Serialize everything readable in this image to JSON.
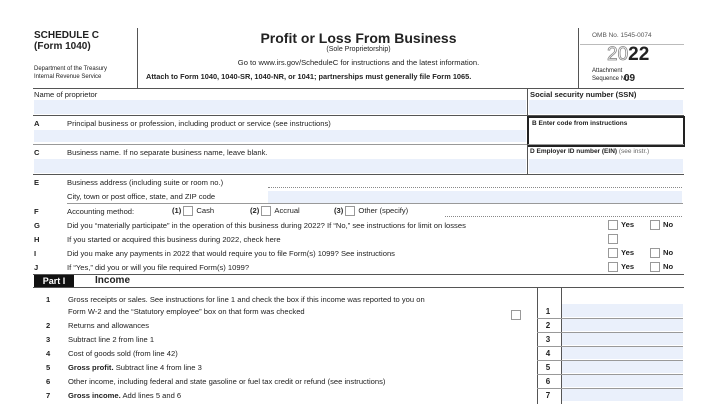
{
  "header": {
    "schedule": "SCHEDULE C",
    "form": "(Form 1040)",
    "dept": "Department of the Treasury",
    "irs": "Internal Revenue Service",
    "title": "Profit or Loss From Business",
    "subtitle": "(Sole Proprietorship)",
    "goto": "Go to www.irs.gov/ScheduleC for instructions and the latest information.",
    "attach": "Attach to Form 1040, 1040-SR, 1040-NR, or 1041; partnerships must generally file Form 1065.",
    "omb": "OMB No. 1545-0074",
    "year_light": "20",
    "year_bold": "22",
    "attachment": "Attachment",
    "sequence": "Sequence No.",
    "seq_no": "09"
  },
  "name_row": {
    "label": "Name of proprietor",
    "ssn": "Social security number (SSN)"
  },
  "lines": {
    "A": {
      "letter": "A",
      "text": "Principal business or profession, including product or service (see instructions)"
    },
    "B": {
      "letter": "B",
      "text": "Enter code from instructions"
    },
    "C": {
      "letter": "C",
      "text": "Business name. If no separate business name, leave blank."
    },
    "D": {
      "letter": "D",
      "text": "Employer ID number (EIN)",
      "note": "(see instr.)"
    },
    "E": {
      "letter": "E",
      "text": "Business address (including suite or room no.)",
      "city": "City, town or post office, state, and ZIP code"
    },
    "F": {
      "letter": "F",
      "text": "Accounting method:",
      "o1n": "(1)",
      "o1": "Cash",
      "o2n": "(2)",
      "o2": "Accrual",
      "o3n": "(3)",
      "o3": "Other (specify)"
    },
    "G": {
      "letter": "G",
      "text": "Did you “materially participate” in the operation of this business during 2022? If “No,” see instructions for limit on losses"
    },
    "H": {
      "letter": "H",
      "text": "If you started or acquired this business during 2022, check here"
    },
    "I": {
      "letter": "I",
      "text": "Did you make any payments in 2022 that would require you to file Form(s) 1099? See instructions"
    },
    "J": {
      "letter": "J",
      "text": "If “Yes,” did you or will you file required Form(s) 1099?"
    },
    "yes": "Yes",
    "no": "No"
  },
  "part1": {
    "tag": "Part I",
    "title": "Income",
    "l1a": "Gross receipts or sales. See instructions for line 1 and check the box if this income was reported to you on",
    "l1b": "Form W-2 and the “Statutory employee” box on that form was checked",
    "l2": "Returns and allowances",
    "l3": "Subtract line 2 from line 1",
    "l4": "Cost of goods sold (from line 42)",
    "l5b": "Gross profit.",
    "l5": "Subtract line 4 from line 3",
    "l6": "Other income, including federal and state gasoline or fuel tax credit or refund (see instructions)",
    "l7b": "Gross income.",
    "l7": "Add lines 5 and 6",
    "nums": [
      "1",
      "2",
      "3",
      "4",
      "5",
      "6",
      "7"
    ]
  }
}
